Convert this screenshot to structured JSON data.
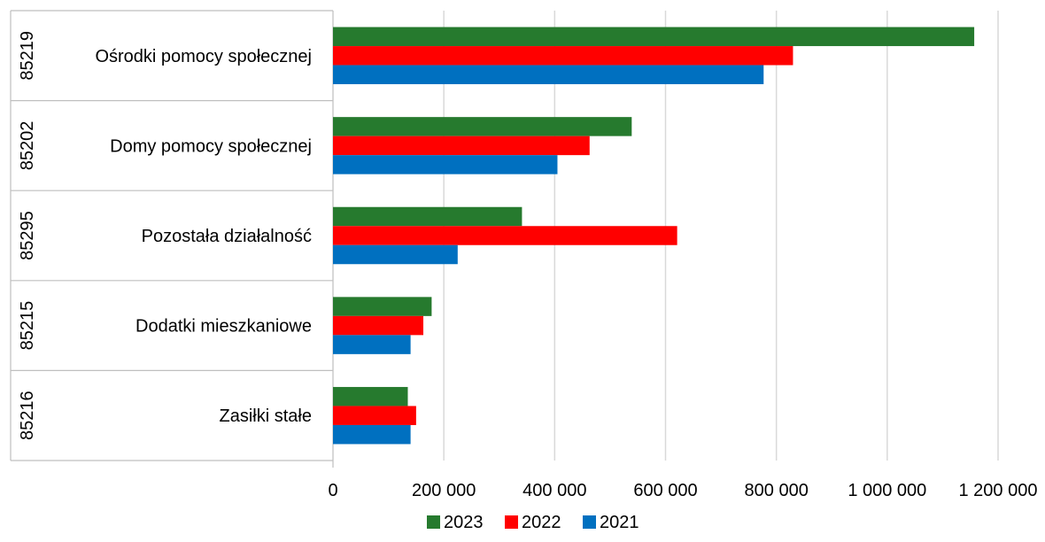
{
  "chart_data": {
    "type": "bar",
    "orientation": "horizontal",
    "categories": [
      {
        "code": "85219",
        "label": "Ośrodki pomocy społecznej"
      },
      {
        "code": "85202",
        "label": "Domy pomocy społecznej"
      },
      {
        "code": "85295",
        "label": "Pozostała działalność"
      },
      {
        "code": "85215",
        "label": "Dodatki mieszkaniowe"
      },
      {
        "code": "85216",
        "label": "Zasiłki stałe"
      }
    ],
    "series": [
      {
        "name": "2023",
        "color": "#267a2e",
        "values": [
          1157000,
          539000,
          341000,
          178000,
          135000
        ]
      },
      {
        "name": "2022",
        "color": "#ff0000",
        "values": [
          830000,
          463000,
          621000,
          163000,
          150000
        ]
      },
      {
        "name": "2021",
        "color": "#0070c0",
        "values": [
          777000,
          405000,
          225000,
          140000,
          140000
        ]
      }
    ],
    "xlim": [
      0,
      1200000
    ],
    "ticks": [
      {
        "value": 0,
        "label": "0"
      },
      {
        "value": 200000,
        "label": "200 000"
      },
      {
        "value": 400000,
        "label": "400 000"
      },
      {
        "value": 600000,
        "label": "600 000"
      },
      {
        "value": 800000,
        "label": "800 000"
      },
      {
        "value": 1000000,
        "label": "1 000 000"
      },
      {
        "value": 1200000,
        "label": "1 200 000"
      }
    ],
    "grid": true,
    "legend_position": "bottom",
    "legend_order": [
      "2023",
      "2022",
      "2021"
    ],
    "title": "",
    "xlabel": "",
    "ylabel": ""
  }
}
